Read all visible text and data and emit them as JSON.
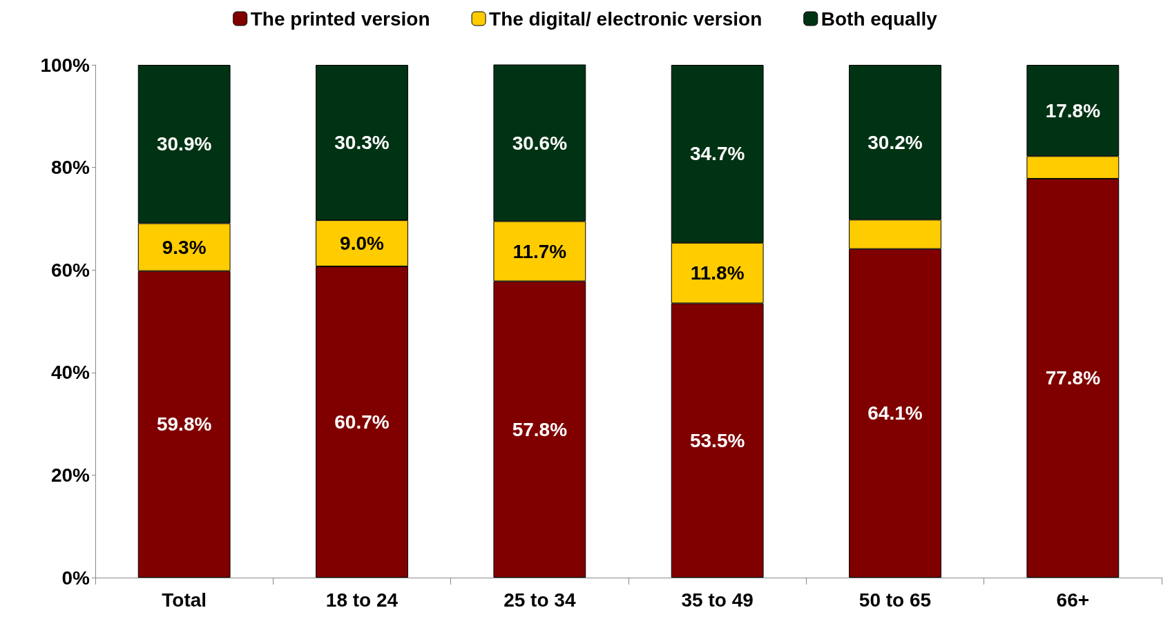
{
  "chart_data": {
    "type": "bar",
    "stacked": true,
    "categories": [
      "Total",
      "18 to 24",
      "25 to 34",
      "35 to 49",
      "50 to 65",
      "66+"
    ],
    "series": [
      {
        "name": "The printed version",
        "color": "#800000",
        "values": [
          59.8,
          60.7,
          57.8,
          53.5,
          64.1,
          77.8
        ],
        "value_labels": [
          "59.8%",
          "60.7%",
          "57.8%",
          "53.5%",
          "64.1%",
          "77.8%"
        ]
      },
      {
        "name": "The digital/ electronic version",
        "color": "#ffcc00",
        "values": [
          9.3,
          9.0,
          11.7,
          11.8,
          5.7,
          4.4
        ],
        "value_labels": [
          "9.3%",
          "9.0%",
          "11.7%",
          "11.8%",
          null,
          null
        ]
      },
      {
        "name": "Both equally",
        "color": "#003314",
        "values": [
          30.9,
          30.3,
          30.6,
          34.7,
          30.2,
          17.8
        ],
        "value_labels": [
          "30.9%",
          "30.3%",
          "30.6%",
          "34.7%",
          "30.2%",
          "17.8%"
        ]
      }
    ],
    "ylim": [
      0,
      100
    ],
    "yticks": [
      {
        "value": 0,
        "label": "0%"
      },
      {
        "value": 20,
        "label": "20%"
      },
      {
        "value": 40,
        "label": "40%"
      },
      {
        "value": 60,
        "label": "60%"
      },
      {
        "value": 80,
        "label": "80%"
      },
      {
        "value": 100,
        "label": "100%"
      }
    ],
    "grid": false,
    "legend": "top"
  }
}
